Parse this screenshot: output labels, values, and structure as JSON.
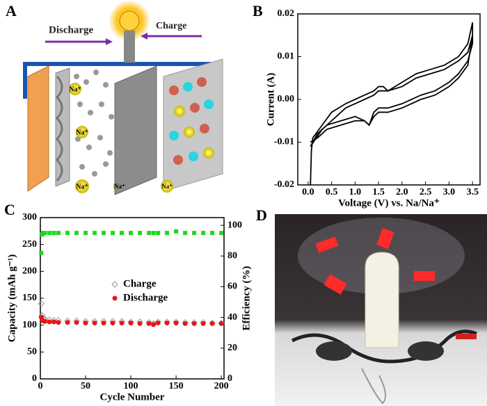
{
  "figure": {
    "panels": [
      "A",
      "B",
      "C",
      "D"
    ],
    "illustration": {
      "discharge": "Discharge",
      "charge": "Charge",
      "ion": "Na⁺"
    }
  },
  "chart_data": [
    {
      "type": "line",
      "xlabel": "Voltage (V) vs. Na/Na⁺",
      "ylabel": "Current (A)",
      "xlim": [
        -0.22,
        3.66
      ],
      "ylim": [
        -0.02,
        0.02
      ],
      "xticks": [
        {
          "value": 0,
          "label": "0.0"
        },
        0.5,
        {
          "value": 1,
          "label": "1.0"
        },
        1.5,
        {
          "value": 2,
          "label": "2.0"
        },
        2.5,
        {
          "value": 3,
          "label": "3.0"
        },
        3.5
      ],
      "yticks": [
        {
          "value": -0.02,
          "label": "-0.02"
        },
        -0.01,
        {
          "value": 0,
          "label": "0.00"
        },
        0.01,
        {
          "value": 0.02,
          "label": "0.02"
        }
      ],
      "series": [
        {
          "color": "#000000",
          "x": [
            0.05,
            0.07,
            0.1,
            0.3,
            0.5,
            0.8,
            1.0,
            1.2,
            1.4,
            1.5,
            1.6,
            1.7,
            2.0,
            2.3,
            2.6,
            2.9,
            3.2,
            3.4,
            3.5,
            3.5,
            3.4,
            3.2,
            3.0,
            2.7,
            2.4,
            2.0,
            1.7,
            1.5,
            1.4,
            1.3,
            1.2,
            1.0,
            0.7,
            0.4,
            0.2,
            0.05
          ],
          "values": [
            -0.02,
            -0.012,
            -0.009,
            -0.006,
            -0.003,
            -0.001,
            0,
            0.001,
            0.002,
            0.003,
            0.003,
            0.002,
            0.004,
            0.006,
            0.007,
            0.008,
            0.01,
            0.013,
            0.018,
            0.015,
            0.008,
            0.005,
            0.003,
            0.001,
            0,
            -0.002,
            -0.003,
            -0.003,
            -0.004,
            -0.006,
            -0.005,
            -0.004,
            -0.005,
            -0.006,
            -0.008,
            -0.011
          ]
        },
        {
          "color": "#000000",
          "x": [
            0.05,
            0.3,
            0.5,
            0.8,
            1.0,
            1.2,
            1.4,
            1.5,
            1.6,
            1.7,
            2.0,
            2.3,
            2.6,
            2.9,
            3.2,
            3.4,
            3.5,
            3.5,
            3.4,
            3.2,
            3.0,
            2.7,
            2.4,
            2.0,
            1.7,
            1.5,
            1.4,
            1.3,
            1.2,
            1.0,
            0.7,
            0.4,
            0.2,
            0.05
          ],
          "values": [
            -0.011,
            -0.007,
            -0.005,
            -0.002,
            -0.001,
            0,
            0.001,
            0.002,
            0.002,
            0.002,
            0.003,
            0.005,
            0.006,
            0.007,
            0.009,
            0.011,
            0.015,
            0.013,
            0.009,
            0.006,
            0.004,
            0.002,
            0.001,
            -0.001,
            -0.002,
            -0.002,
            -0.003,
            -0.006,
            -0.005,
            -0.005,
            -0.006,
            -0.007,
            -0.009,
            -0.01
          ]
        }
      ]
    },
    {
      "type": "scatter",
      "xlabel": "Cycle Number",
      "ylabel": "Capacity (mAh g⁻¹)",
      "y2label": "Efficiency (%)",
      "xlim": [
        0,
        203
      ],
      "ylim": [
        0,
        300
      ],
      "y2lim": [
        0,
        105
      ],
      "xticks": [
        0,
        50,
        100,
        150,
        200
      ],
      "yticks": [
        0,
        50,
        100,
        150,
        200,
        250,
        300
      ],
      "y2ticks": [
        0,
        20,
        40,
        60,
        80,
        100
      ],
      "legend": "center",
      "x": [
        1,
        2,
        3,
        5,
        10,
        15,
        20,
        30,
        40,
        50,
        60,
        70,
        80,
        90,
        100,
        110,
        120,
        125,
        130,
        140,
        150,
        160,
        170,
        180,
        190,
        200
      ],
      "series": [
        {
          "name": "Charge",
          "color": "#999999",
          "marker": "diamond-open",
          "values": [
            140,
            118,
            113,
            111,
            110,
            109,
            109,
            108,
            108,
            107,
            107,
            107,
            107,
            107,
            106,
            106,
            105,
            103,
            106,
            106,
            106,
            105,
            105,
            105,
            104,
            104
          ]
        },
        {
          "name": "Discharge",
          "color": "#e8141b",
          "marker": "circle",
          "values": [
            115,
            110,
            108,
            107,
            106,
            106,
            105,
            105,
            105,
            104,
            104,
            104,
            104,
            104,
            104,
            103,
            103,
            101,
            104,
            104,
            104,
            103,
            103,
            103,
            103,
            103
          ]
        },
        {
          "color": "#1fd81f",
          "marker": "square",
          "axis": "y2",
          "values": [
            82,
            94,
            95,
            95,
            95,
            95,
            95,
            95,
            95,
            95,
            95,
            95,
            95,
            95,
            95,
            95,
            95,
            95,
            95,
            95,
            96,
            95,
            95,
            95,
            95,
            95
          ]
        }
      ]
    }
  ]
}
